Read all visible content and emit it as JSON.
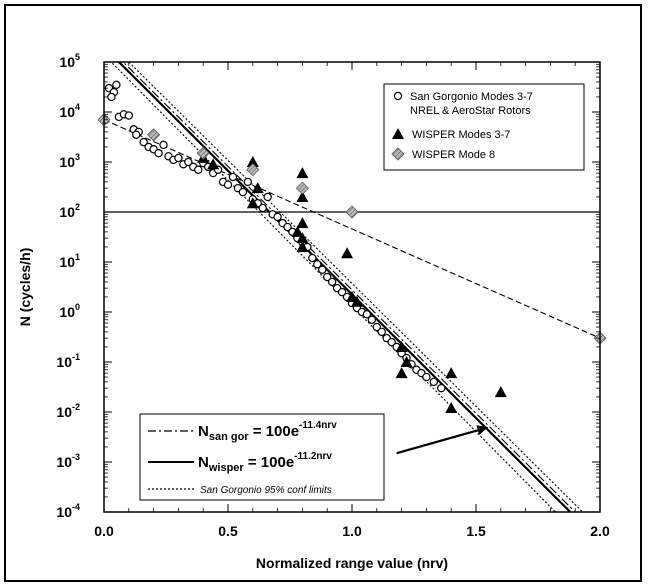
{
  "chart_data": {
    "type": "scatter",
    "xlabel": "Normalized range value (nrv)",
    "ylabel": "N (cycles/h)",
    "xlim": [
      0.0,
      2.0
    ],
    "ylim": [
      0.0001,
      100000
    ],
    "y_scale": "log",
    "x_ticks": [
      "0.0",
      "0.5",
      "1.0",
      "1.5",
      "2.0"
    ],
    "y_ticks": [
      {
        "base": "10",
        "exp": "5",
        "value": 100000
      },
      {
        "base": "10",
        "exp": "4",
        "value": 10000
      },
      {
        "base": "10",
        "exp": "3",
        "value": 1000
      },
      {
        "base": "10",
        "exp": "2",
        "value": 100
      },
      {
        "base": "10",
        "exp": "1",
        "value": 10
      },
      {
        "base": "10",
        "exp": "0",
        "value": 1
      },
      {
        "base": "10",
        "exp": "-1",
        "value": 0.1
      },
      {
        "base": "10",
        "exp": "-2",
        "value": 0.01
      },
      {
        "base": "10",
        "exp": "-3",
        "value": 0.001
      },
      {
        "base": "10",
        "exp": "-4",
        "value": 0.0001
      }
    ],
    "reference_line_y": 100,
    "legend": {
      "placement": "top-right",
      "entries": [
        {
          "label_line1": "San Gorgonio Modes 3-7",
          "label_line2": "NREL & AeroStar Rotors",
          "marker": "open-circle"
        },
        {
          "label_line1": "WISPER Modes 3-7",
          "label_line2": "",
          "marker": "filled-triangle"
        },
        {
          "label_line1": "WISPER Mode 8",
          "label_line2": "",
          "marker": "hatched-diamond"
        }
      ]
    },
    "fit_legend": {
      "placement": "bottom-left",
      "sangor": {
        "symbol": "N",
        "sub": "san gor",
        "eq": " = 100e",
        "exp": "-11.4nrv"
      },
      "wisper": {
        "symbol": "N",
        "sub": "wisper",
        "eq": "  = 100e",
        "exp": "-11.2nrv"
      },
      "conf_label": "San Gorgonio 95% conf limits"
    },
    "series": [
      {
        "name": "San Gorgonio Modes 3-7 NREL & AeroStar Rotors",
        "marker": "open-circle",
        "points": [
          [
            0.02,
            30000
          ],
          [
            0.04,
            25000
          ],
          [
            0.03,
            20000
          ],
          [
            0.05,
            35000
          ],
          [
            0.06,
            8000
          ],
          [
            0.08,
            9000
          ],
          [
            0.1,
            8500
          ],
          [
            0.12,
            4500
          ],
          [
            0.14,
            4000
          ],
          [
            0.13,
            3500
          ],
          [
            0.16,
            2500
          ],
          [
            0.18,
            2000
          ],
          [
            0.2,
            1800
          ],
          [
            0.22,
            1500
          ],
          [
            0.24,
            2200
          ],
          [
            0.26,
            1300
          ],
          [
            0.28,
            1100
          ],
          [
            0.3,
            1200
          ],
          [
            0.32,
            900
          ],
          [
            0.34,
            1000
          ],
          [
            0.36,
            800
          ],
          [
            0.38,
            700
          ],
          [
            0.4,
            950
          ],
          [
            0.42,
            800
          ],
          [
            0.44,
            600
          ],
          [
            0.46,
            700
          ],
          [
            0.48,
            400
          ],
          [
            0.5,
            350
          ],
          [
            0.52,
            500
          ],
          [
            0.54,
            300
          ],
          [
            0.56,
            250
          ],
          [
            0.58,
            400
          ],
          [
            0.6,
            180
          ],
          [
            0.62,
            150
          ],
          [
            0.64,
            120
          ],
          [
            0.66,
            200
          ],
          [
            0.68,
            90
          ],
          [
            0.7,
            80
          ],
          [
            0.72,
            60
          ],
          [
            0.74,
            50
          ],
          [
            0.76,
            40
          ],
          [
            0.78,
            30
          ],
          [
            0.8,
            25
          ],
          [
            0.82,
            20
          ],
          [
            0.84,
            12
          ],
          [
            0.86,
            9
          ],
          [
            0.88,
            7
          ],
          [
            0.9,
            5
          ],
          [
            0.92,
            4
          ],
          [
            0.94,
            3
          ],
          [
            0.96,
            2.5
          ],
          [
            0.98,
            2
          ],
          [
            1.0,
            1.5
          ],
          [
            1.02,
            1.2
          ],
          [
            1.04,
            1
          ],
          [
            1.06,
            0.9
          ],
          [
            1.08,
            0.7
          ],
          [
            1.1,
            0.5
          ],
          [
            1.12,
            0.4
          ],
          [
            1.14,
            0.3
          ],
          [
            1.16,
            0.25
          ],
          [
            1.18,
            0.2
          ],
          [
            1.2,
            0.15
          ],
          [
            1.22,
            0.12
          ],
          [
            1.24,
            0.09
          ],
          [
            1.26,
            0.07
          ],
          [
            1.28,
            0.06
          ],
          [
            1.3,
            0.05
          ],
          [
            1.33,
            0.04
          ],
          [
            1.36,
            0.03
          ]
        ]
      },
      {
        "name": "WISPER Modes 3-7",
        "marker": "filled-triangle",
        "points": [
          [
            0.4,
            1200
          ],
          [
            0.44,
            900
          ],
          [
            0.6,
            150
          ],
          [
            0.6,
            1000
          ],
          [
            0.62,
            300
          ],
          [
            0.8,
            600
          ],
          [
            0.8,
            200
          ],
          [
            0.8,
            60
          ],
          [
            0.78,
            40
          ],
          [
            0.8,
            20
          ],
          [
            0.8,
            30
          ],
          [
            0.98,
            15
          ],
          [
            1.0,
            2
          ],
          [
            1.02,
            1.6
          ],
          [
            1.2,
            0.2
          ],
          [
            1.22,
            0.1
          ],
          [
            1.2,
            0.06
          ],
          [
            1.4,
            0.06
          ],
          [
            1.4,
            0.012
          ],
          [
            1.6,
            0.025
          ]
        ]
      },
      {
        "name": "WISPER Mode 8",
        "marker": "hatched-diamond",
        "points": [
          [
            0.0,
            7000
          ],
          [
            0.2,
            3500
          ],
          [
            0.4,
            1500
          ],
          [
            0.6,
            700
          ],
          [
            0.8,
            300
          ],
          [
            1.0,
            100
          ],
          [
            2.0,
            0.3
          ]
        ]
      }
    ],
    "fit_lines": [
      {
        "name": "san gor fit",
        "style": "dash-dot",
        "points": [
          [
            0.0,
            240000
          ],
          [
            1.9,
            0.0001
          ]
        ]
      },
      {
        "name": "wisper fit",
        "style": "solid",
        "points": [
          [
            0.06,
            100000
          ],
          [
            1.88,
            0.0001
          ]
        ]
      },
      {
        "name": "conf upper",
        "style": "dotted",
        "points": [
          [
            0.0,
            140000
          ],
          [
            1.82,
            0.0001
          ]
        ]
      },
      {
        "name": "conf lower",
        "style": "dotted",
        "points": [
          [
            0.1,
            100000
          ],
          [
            1.93,
            0.0001
          ]
        ]
      },
      {
        "name": "wisper mode 8 trend",
        "style": "dashed",
        "points": [
          [
            0.0,
            7000
          ],
          [
            2.0,
            0.3
          ]
        ]
      }
    ],
    "arrow": {
      "from": [
        1.18,
        0.0015
      ],
      "to": [
        1.55,
        0.005
      ]
    }
  }
}
